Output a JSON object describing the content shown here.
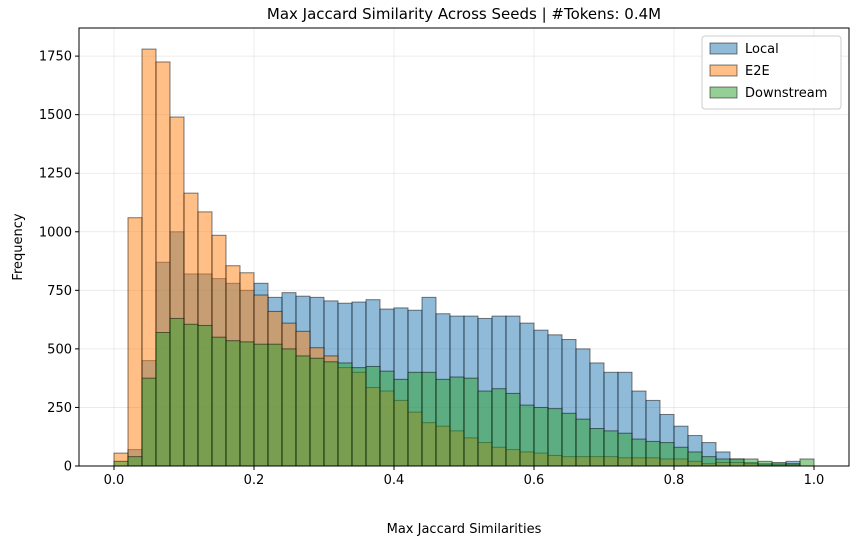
{
  "chart_data": {
    "type": "histogram",
    "title": "Max Jaccard Similarity Across Seeds | #Tokens: 0.4M",
    "xlabel": "Max Jaccard Similarities",
    "ylabel": "Frequency",
    "xlim": [
      -0.05,
      1.05
    ],
    "ylim": [
      0,
      1870
    ],
    "xticks": [
      0.0,
      0.2,
      0.4,
      0.6,
      0.8,
      1.0
    ],
    "xtick_labels": [
      "0.0",
      "0.2",
      "0.4",
      "0.6",
      "0.8",
      "1.0"
    ],
    "yticks": [
      0,
      250,
      500,
      750,
      1000,
      1250,
      1500,
      1750
    ],
    "ytick_labels": [
      "0",
      "250",
      "500",
      "750",
      "1000",
      "1250",
      "1500",
      "1750"
    ],
    "grid": true,
    "legend_position": "top-right",
    "bin_width": 0.02,
    "bin_starts": [
      0.0,
      0.02,
      0.04,
      0.06,
      0.08,
      0.1,
      0.12,
      0.14,
      0.16,
      0.18,
      0.2,
      0.22,
      0.24,
      0.26,
      0.28,
      0.3,
      0.32,
      0.34,
      0.36,
      0.38,
      0.4,
      0.42,
      0.44,
      0.46,
      0.48,
      0.5,
      0.52,
      0.54,
      0.56,
      0.58,
      0.6,
      0.62,
      0.64,
      0.66,
      0.68,
      0.7,
      0.72,
      0.74,
      0.76,
      0.78,
      0.8,
      0.82,
      0.84,
      0.86,
      0.88,
      0.9,
      0.92,
      0.94,
      0.96,
      0.98
    ],
    "series": [
      {
        "name": "Local",
        "color": "#1f77b4",
        "values": [
          0,
          70,
          450,
          870,
          1000,
          820,
          820,
          800,
          780,
          750,
          780,
          720,
          740,
          725,
          720,
          705,
          695,
          700,
          710,
          670,
          675,
          665,
          720,
          650,
          640,
          640,
          630,
          640,
          640,
          610,
          580,
          560,
          540,
          500,
          440,
          400,
          400,
          320,
          280,
          220,
          170,
          130,
          100,
          60,
          30,
          15,
          10,
          10,
          20,
          0
        ]
      },
      {
        "name": "E2E",
        "color": "#ff7f0e",
        "values": [
          55,
          1060,
          1780,
          1725,
          1490,
          1165,
          1085,
          985,
          855,
          825,
          730,
          660,
          610,
          575,
          505,
          470,
          420,
          400,
          335,
          320,
          280,
          230,
          185,
          170,
          150,
          120,
          100,
          80,
          70,
          60,
          55,
          45,
          40,
          40,
          40,
          40,
          35,
          35,
          35,
          30,
          30,
          20,
          10,
          15,
          15,
          10,
          5,
          5,
          5,
          0
        ]
      },
      {
        "name": "Downstream",
        "color": "#2ca02c",
        "values": [
          20,
          40,
          375,
          570,
          630,
          605,
          600,
          550,
          535,
          530,
          520,
          520,
          500,
          470,
          460,
          445,
          440,
          420,
          425,
          405,
          370,
          400,
          400,
          370,
          380,
          375,
          320,
          330,
          310,
          260,
          250,
          245,
          225,
          200,
          160,
          150,
          140,
          115,
          105,
          100,
          80,
          60,
          40,
          30,
          30,
          30,
          20,
          15,
          10,
          30
        ]
      }
    ]
  }
}
